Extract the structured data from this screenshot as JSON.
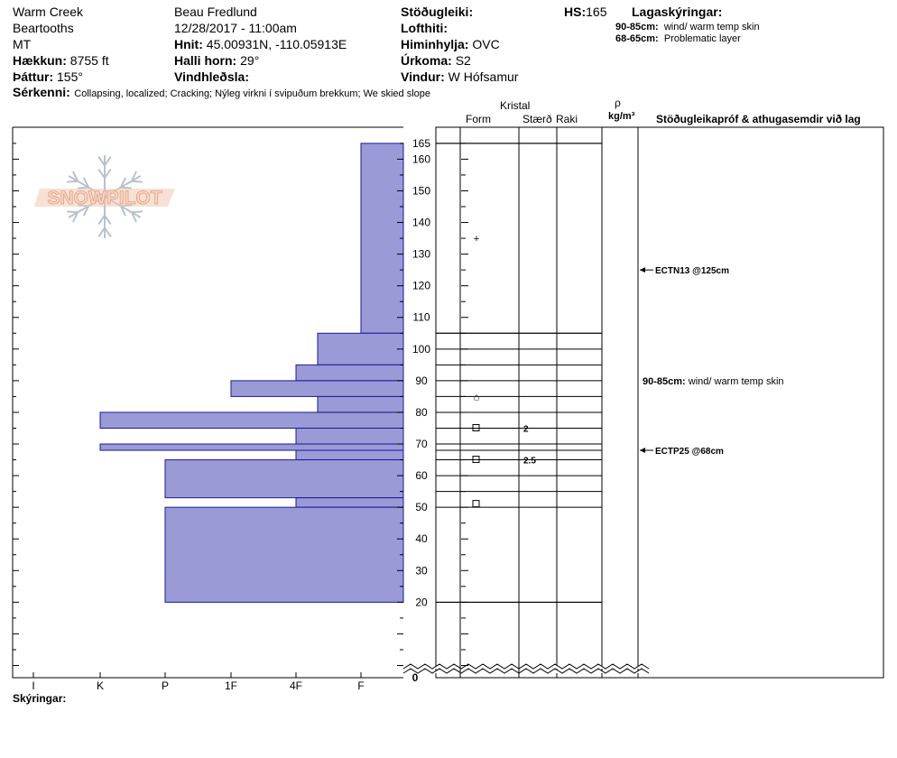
{
  "header": {
    "location": "Warm Creek",
    "range": "Beartooths",
    "state": "MT",
    "elevation_label": "Hækkun:",
    "elevation": "8755 ft",
    "aspect_label": "Þáttur:",
    "aspect": "155°",
    "observer": "Beau  Fredlund",
    "datetime": "12/28/2017 - 11:00am",
    "coords_label": "Hnit:",
    "coords": "45.00931N, -110.05913E",
    "slope_label": "Halli horn:",
    "slope": "29°",
    "wind_loading_label": "Vindhleðsla:",
    "wind_loading": "",
    "stability_label": "Stöðugleiki:",
    "stability": "",
    "air_temp_label": "Lofthiti:",
    "air_temp": "",
    "sky_label": "Himinhylja:",
    "sky": "OVC",
    "precip_label": "Úrkoma:",
    "precip": "S2",
    "wind_label": "Vindur:",
    "wind": "W Hófsamur",
    "hs_label": "HS:",
    "hs": "165",
    "layer_notes_title": "Lagaskýringar:",
    "layer_notes": [
      {
        "range": "90-85cm:",
        "text": "wind/ warm temp skin"
      },
      {
        "range": "68-65cm:",
        "text": "Problematic layer"
      }
    ],
    "features_label": "Sérkenni:",
    "features": "Collapsing, localized;  Cracking;  Nýleg virkni í svipuðum brekkum;  We skied slope"
  },
  "columns": {
    "crystal": "Kristal",
    "form": "Form",
    "size": "Stærð",
    "moisture": "Raki",
    "density_symbol": "ρ",
    "density_unit": "kg/m³",
    "tests": "Stöðugleikapróf & athugasemdir við lag"
  },
  "footer": {
    "notes_label": "Skýringar:"
  },
  "logo": {
    "text": "SNOWPILOT"
  },
  "colors": {
    "bar_fill": "#9a9ad6",
    "bar_stroke": "#1a1a9a"
  },
  "chart_data": {
    "type": "bar",
    "orientation": "horizontal",
    "y_axis": {
      "label": "",
      "range": [
        0,
        165
      ],
      "ticks": [
        20,
        30,
        40,
        50,
        60,
        70,
        80,
        90,
        100,
        110,
        120,
        130,
        140,
        150,
        160,
        165
      ],
      "zero_label": "0"
    },
    "x_axis": {
      "categories": [
        "I",
        "K",
        "P",
        "1F",
        "4F",
        "F"
      ],
      "reversed": true
    },
    "hardness_layers": [
      {
        "top": 165,
        "bottom": 105,
        "hardness": "F"
      },
      {
        "top": 105,
        "bottom": 95,
        "hardness": "F+"
      },
      {
        "top": 95,
        "bottom": 90,
        "hardness": "4F"
      },
      {
        "top": 90,
        "bottom": 85,
        "hardness": "1F"
      },
      {
        "top": 85,
        "bottom": 80,
        "hardness": "4F-"
      },
      {
        "top": 80,
        "bottom": 75,
        "hardness": "K"
      },
      {
        "top": 75,
        "bottom": 70,
        "hardness": "4F"
      },
      {
        "top": 70,
        "bottom": 68,
        "hardness": "K"
      },
      {
        "top": 68,
        "bottom": 65,
        "hardness": "4F"
      },
      {
        "top": 65,
        "bottom": 53,
        "hardness": "P"
      },
      {
        "top": 53,
        "bottom": 50,
        "hardness": "4F"
      },
      {
        "top": 50,
        "bottom": 20,
        "hardness": "P"
      }
    ],
    "layer_boundaries": [
      165,
      105,
      100,
      95,
      90,
      85,
      80,
      75,
      70,
      68,
      65,
      60,
      55,
      50,
      20
    ],
    "crystals": [
      {
        "depth": 135,
        "form": "+",
        "size": ""
      },
      {
        "depth": 85,
        "form": "⌂",
        "size": ""
      },
      {
        "depth": 75,
        "form": "□",
        "size": "2"
      },
      {
        "depth": 65,
        "form": "□",
        "size": "2.5"
      },
      {
        "depth": 51,
        "form": "□",
        "size": ""
      }
    ],
    "tests": [
      {
        "depth": 125,
        "text": "ECTN13 @125cm"
      },
      {
        "depth": 68,
        "text": "ECTP25 @68cm"
      }
    ],
    "layer_comments": [
      {
        "depth": 90,
        "range": "90-85cm:",
        "text": "wind/ warm temp skin"
      }
    ]
  }
}
